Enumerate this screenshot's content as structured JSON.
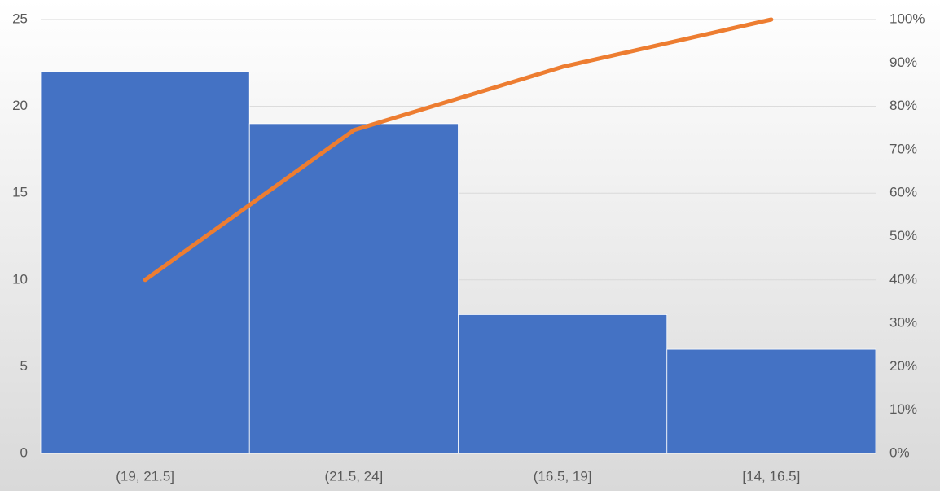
{
  "chart_data": {
    "type": "bar",
    "categories": [
      "(19, 21.5]",
      "(21.5, 24]",
      "(16.5, 19]",
      "[14, 16.5]"
    ],
    "series": [
      {
        "type": "bar",
        "color": "#4472c4",
        "values": [
          22,
          19,
          8,
          6
        ]
      },
      {
        "type": "line",
        "axis": "y2",
        "color": "#ed7d31",
        "values": [
          40,
          74.5,
          89.1,
          100
        ]
      }
    ],
    "ylim": [
      0,
      25
    ],
    "yticks": [
      0,
      5,
      10,
      15,
      20,
      25
    ],
    "y2lim": [
      0,
      100
    ],
    "y2ticks": [
      {
        "value": 0,
        "label": "0%"
      },
      {
        "value": 10,
        "label": "10%"
      },
      {
        "value": 20,
        "label": "20%"
      },
      {
        "value": 30,
        "label": "30%"
      },
      {
        "value": 40,
        "label": "40%"
      },
      {
        "value": 50,
        "label": "50%"
      },
      {
        "value": 60,
        "label": "60%"
      },
      {
        "value": 70,
        "label": "70%"
      },
      {
        "value": 80,
        "label": "80%"
      },
      {
        "value": 90,
        "label": "90%"
      },
      {
        "value": 100,
        "label": "100%"
      }
    ],
    "grid": true
  }
}
